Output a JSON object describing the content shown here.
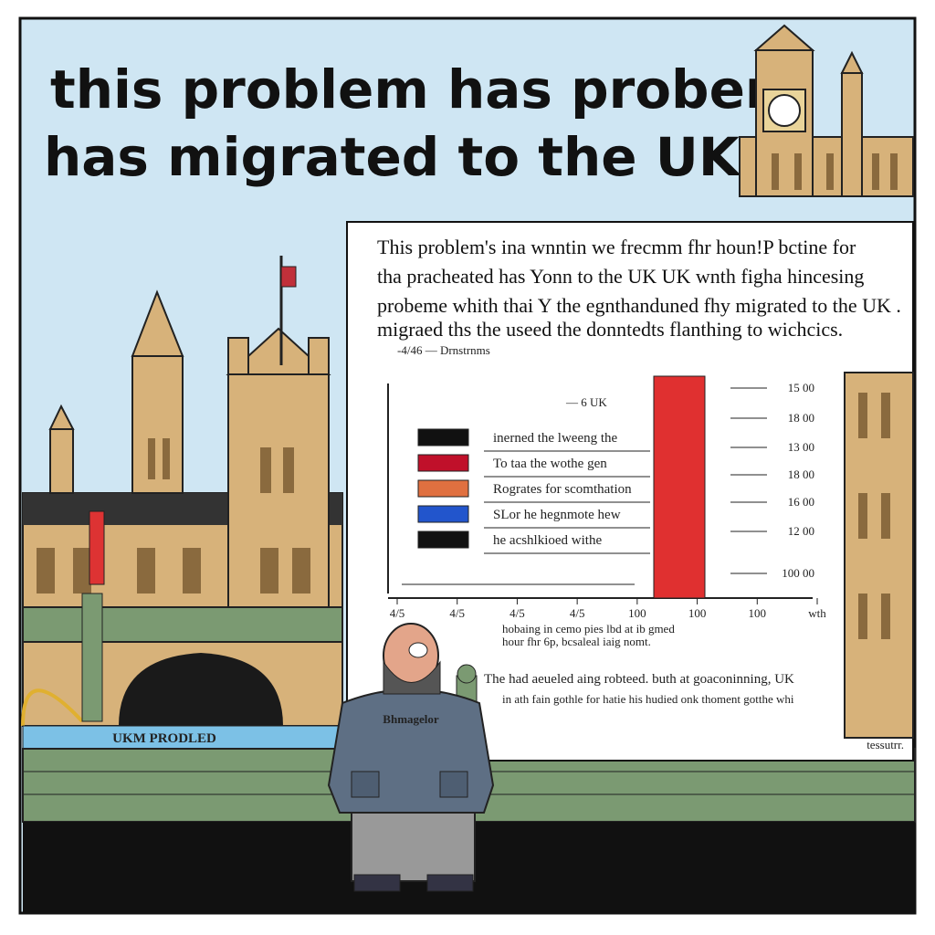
{
  "headline": [
    "this problem has probem",
    "has migrated to the UK."
  ],
  "panel": {
    "paragraph": [
      "This problem's ina wnntin we frecmm fhr houn!P bctine for",
      "tha pracheated has Yonn to the UK UK wnth figha hincesing",
      "probeme whith thai Y the egnthanduned fhy migrated to the UK .",
      "migraed ths the useed the donntedts flanthing to wichcics."
    ],
    "legend_header": "-4/46  — Drnstrnms",
    "chart_note": "— 6 UK",
    "legend": [
      "inerned the lweeng the",
      "To taa the wothe gen",
      "Rogrates for scomthation",
      "SLor he hegnmote hew",
      "he acshlkioed withe"
    ],
    "right_ticks": [
      "15 00",
      "18 00",
      "13 00",
      "18 00",
      "16 00",
      "12 00",
      "100 00"
    ],
    "bottom_ticks": [
      "4/5",
      "4/5",
      "4/5",
      "4/5",
      "100",
      "100",
      "100",
      "wth"
    ],
    "note": [
      "hobaing in cemo pies lbd at ib gmed",
      "hour fhr 6p, bcsaleal iaig nomt."
    ],
    "caption": [
      "The had aeueled aing robteed. buth at goaconinning, UK",
      "in ath fain gothle for hatie his hudied onk thoment gotthe whi"
    ],
    "corner_note": "tessutrr."
  },
  "sign": "UKM PRODLED",
  "jacket": "Bhmagelor"
}
